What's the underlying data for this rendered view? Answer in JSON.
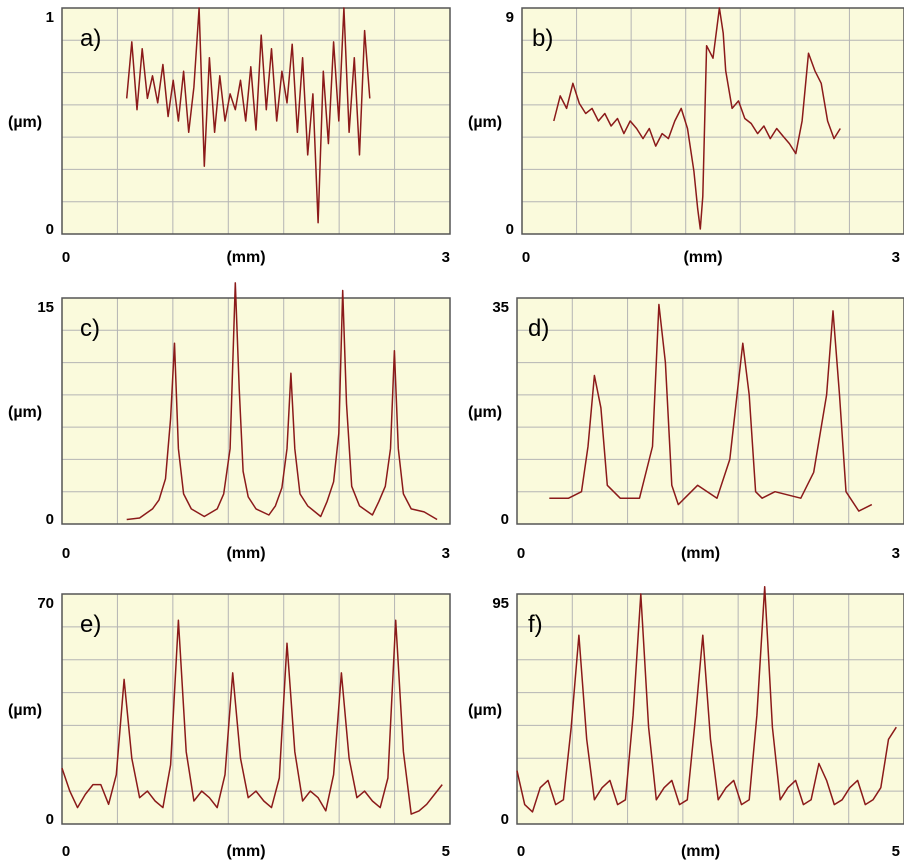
{
  "chart_data": [
    {
      "type": "line",
      "panel": "a)",
      "xlabel": "(mm)",
      "ylabel": "(µm)",
      "xlim": [
        0,
        3
      ],
      "ylim": [
        0,
        1
      ],
      "x_ticks": [
        "0",
        "3"
      ],
      "y_ticks": [
        "1",
        "0"
      ],
      "grid": true,
      "line_color": "#8b1a1a",
      "x": [
        0.5,
        0.54,
        0.58,
        0.62,
        0.66,
        0.7,
        0.74,
        0.78,
        0.82,
        0.86,
        0.9,
        0.94,
        0.98,
        1.02,
        1.06,
        1.1,
        1.14,
        1.18,
        1.22,
        1.26,
        1.3,
        1.34,
        1.38,
        1.42,
        1.46,
        1.5,
        1.54,
        1.58,
        1.62,
        1.66,
        1.7,
        1.74,
        1.78,
        1.82,
        1.86,
        1.9,
        1.94,
        1.98,
        2.02,
        2.06,
        2.1,
        2.14,
        2.18,
        2.22,
        2.26,
        2.3,
        2.34,
        2.38
      ],
      "y": [
        0.6,
        0.85,
        0.55,
        0.82,
        0.6,
        0.7,
        0.58,
        0.75,
        0.52,
        0.68,
        0.5,
        0.72,
        0.45,
        0.65,
        1.0,
        0.3,
        0.78,
        0.45,
        0.7,
        0.5,
        0.62,
        0.55,
        0.68,
        0.5,
        0.74,
        0.46,
        0.88,
        0.55,
        0.82,
        0.5,
        0.72,
        0.58,
        0.84,
        0.45,
        0.78,
        0.35,
        0.62,
        0.05,
        0.72,
        0.4,
        0.85,
        0.5,
        1.0,
        0.45,
        0.78,
        0.35,
        0.9,
        0.6
      ]
    },
    {
      "type": "line",
      "panel": "b)",
      "xlabel": "(mm)",
      "ylabel": "(µm)",
      "xlim": [
        0,
        3
      ],
      "ylim": [
        0,
        9
      ],
      "x_ticks": [
        "0",
        "3"
      ],
      "y_ticks": [
        "9",
        "0"
      ],
      "grid": true,
      "line_color": "#8b1a1a",
      "x": [
        0.25,
        0.3,
        0.35,
        0.4,
        0.45,
        0.5,
        0.55,
        0.6,
        0.65,
        0.7,
        0.75,
        0.8,
        0.85,
        0.9,
        0.95,
        1.0,
        1.05,
        1.1,
        1.15,
        1.2,
        1.25,
        1.3,
        1.35,
        1.38,
        1.4,
        1.42,
        1.45,
        1.5,
        1.55,
        1.58,
        1.6,
        1.65,
        1.7,
        1.75,
        1.8,
        1.85,
        1.9,
        1.95,
        2.0,
        2.05,
        2.1,
        2.15,
        2.2,
        2.25,
        2.3,
        2.35,
        2.4,
        2.45,
        2.5
      ],
      "y": [
        4.5,
        5.5,
        5.0,
        6.0,
        5.2,
        4.8,
        5.0,
        4.5,
        4.8,
        4.3,
        4.6,
        4.0,
        4.5,
        4.2,
        3.8,
        4.2,
        3.5,
        4.0,
        3.8,
        4.5,
        5.0,
        4.2,
        2.5,
        1.0,
        0.2,
        1.5,
        7.5,
        7.0,
        9.0,
        8.0,
        6.5,
        5.0,
        5.3,
        4.6,
        4.4,
        4.0,
        4.3,
        3.8,
        4.2,
        3.9,
        3.6,
        3.2,
        4.5,
        7.2,
        6.5,
        6.0,
        4.5,
        3.8,
        4.2
      ]
    },
    {
      "type": "line",
      "panel": "c)",
      "xlabel": "(mm)",
      "ylabel": "(µm)",
      "xlim": [
        0,
        3
      ],
      "ylim": [
        0,
        15
      ],
      "x_ticks": [
        "0",
        "3"
      ],
      "y_ticks": [
        "15",
        "0"
      ],
      "grid": true,
      "line_color": "#8b1a1a",
      "x": [
        0.5,
        0.6,
        0.7,
        0.75,
        0.8,
        0.84,
        0.87,
        0.9,
        0.94,
        1.0,
        1.1,
        1.2,
        1.25,
        1.3,
        1.34,
        1.37,
        1.4,
        1.44,
        1.5,
        1.6,
        1.65,
        1.7,
        1.74,
        1.77,
        1.8,
        1.84,
        1.9,
        2.0,
        2.05,
        2.1,
        2.14,
        2.17,
        2.2,
        2.24,
        2.3,
        2.4,
        2.45,
        2.5,
        2.54,
        2.57,
        2.6,
        2.64,
        2.7,
        2.8,
        2.9
      ],
      "y": [
        0.3,
        0.4,
        1.0,
        1.6,
        3.0,
        7.0,
        12.0,
        5.0,
        2.0,
        1.0,
        0.5,
        1.0,
        2.0,
        5.0,
        16.0,
        9.0,
        3.5,
        1.8,
        1.0,
        0.6,
        1.2,
        2.4,
        5.0,
        10.0,
        5.0,
        2.0,
        1.2,
        0.5,
        1.5,
        2.8,
        6.0,
        15.5,
        8.0,
        2.5,
        1.2,
        0.6,
        1.5,
        2.5,
        5.0,
        11.5,
        5.0,
        2.0,
        1.0,
        0.8,
        0.3
      ]
    },
    {
      "type": "line",
      "panel": "d)",
      "xlabel": "(mm)",
      "ylabel": "(µm)",
      "xlim": [
        0,
        3
      ],
      "ylim": [
        0,
        35
      ],
      "x_ticks": [
        "0",
        "3"
      ],
      "y_ticks": [
        "35",
        "0"
      ],
      "grid": true,
      "line_color": "#8b1a1a",
      "x": [
        0.25,
        0.4,
        0.5,
        0.55,
        0.6,
        0.65,
        0.7,
        0.8,
        0.95,
        1.05,
        1.1,
        1.15,
        1.2,
        1.25,
        1.3,
        1.4,
        1.55,
        1.65,
        1.75,
        1.8,
        1.85,
        1.9,
        2.0,
        2.2,
        2.3,
        2.4,
        2.45,
        2.5,
        2.55,
        2.65,
        2.75
      ],
      "y": [
        4,
        4,
        5,
        12,
        23,
        18,
        6,
        4,
        4,
        12,
        34,
        25,
        6,
        3,
        4,
        6,
        4,
        10,
        28,
        20,
        5,
        4,
        5,
        4,
        8,
        20,
        33,
        20,
        5,
        2,
        3
      ]
    },
    {
      "type": "line",
      "panel": "e)",
      "xlabel": "(mm)",
      "ylabel": "(µm)",
      "xlim": [
        0,
        5
      ],
      "ylim": [
        0,
        70
      ],
      "x_ticks": [
        "0",
        "5"
      ],
      "y_ticks": [
        "70",
        "0"
      ],
      "grid": true,
      "line_color": "#8b1a1a",
      "x": [
        0.0,
        0.1,
        0.2,
        0.3,
        0.4,
        0.5,
        0.6,
        0.7,
        0.8,
        0.9,
        1.0,
        1.1,
        1.2,
        1.3,
        1.4,
        1.5,
        1.6,
        1.7,
        1.8,
        1.9,
        2.0,
        2.1,
        2.2,
        2.3,
        2.4,
        2.5,
        2.6,
        2.7,
        2.8,
        2.9,
        3.0,
        3.1,
        3.2,
        3.3,
        3.4,
        3.5,
        3.6,
        3.7,
        3.8,
        3.9,
        4.0,
        4.1,
        4.2,
        4.3,
        4.4,
        4.5,
        4.6,
        4.7,
        4.8,
        4.9
      ],
      "y": [
        17,
        10,
        5,
        9,
        12,
        12,
        6,
        15,
        44,
        20,
        8,
        10,
        7,
        5,
        18,
        62,
        22,
        7,
        10,
        8,
        5,
        15,
        46,
        20,
        8,
        10,
        7,
        5,
        14,
        55,
        22,
        7,
        10,
        8,
        4,
        15,
        46,
        20,
        8,
        10,
        7,
        5,
        14,
        62,
        22,
        3,
        4,
        6,
        9,
        12
      ]
    },
    {
      "type": "line",
      "panel": "f)",
      "xlabel": "(mm)",
      "ylabel": "(µm)",
      "xlim": [
        0,
        5
      ],
      "ylim": [
        0,
        95
      ],
      "x_ticks": [
        "0",
        "5"
      ],
      "y_ticks": [
        "95",
        "0"
      ],
      "grid": true,
      "line_color": "#8b1a1a",
      "x": [
        0.0,
        0.1,
        0.2,
        0.3,
        0.4,
        0.5,
        0.6,
        0.7,
        0.8,
        0.9,
        1.0,
        1.1,
        1.2,
        1.3,
        1.4,
        1.5,
        1.6,
        1.7,
        1.8,
        1.9,
        2.0,
        2.1,
        2.2,
        2.3,
        2.4,
        2.5,
        2.6,
        2.7,
        2.8,
        2.9,
        3.0,
        3.1,
        3.2,
        3.3,
        3.4,
        3.5,
        3.6,
        3.7,
        3.8,
        3.9,
        4.0,
        4.1,
        4.2,
        4.3,
        4.4,
        4.5,
        4.6,
        4.7,
        4.8,
        4.9
      ],
      "y": [
        22,
        8,
        5,
        15,
        18,
        8,
        10,
        40,
        78,
        35,
        10,
        15,
        18,
        8,
        10,
        45,
        95,
        40,
        10,
        15,
        18,
        8,
        10,
        42,
        78,
        35,
        10,
        15,
        18,
        8,
        10,
        45,
        98,
        40,
        10,
        15,
        18,
        8,
        10,
        25,
        18,
        8,
        10,
        15,
        18,
        8,
        10,
        15,
        35,
        40
      ]
    }
  ]
}
